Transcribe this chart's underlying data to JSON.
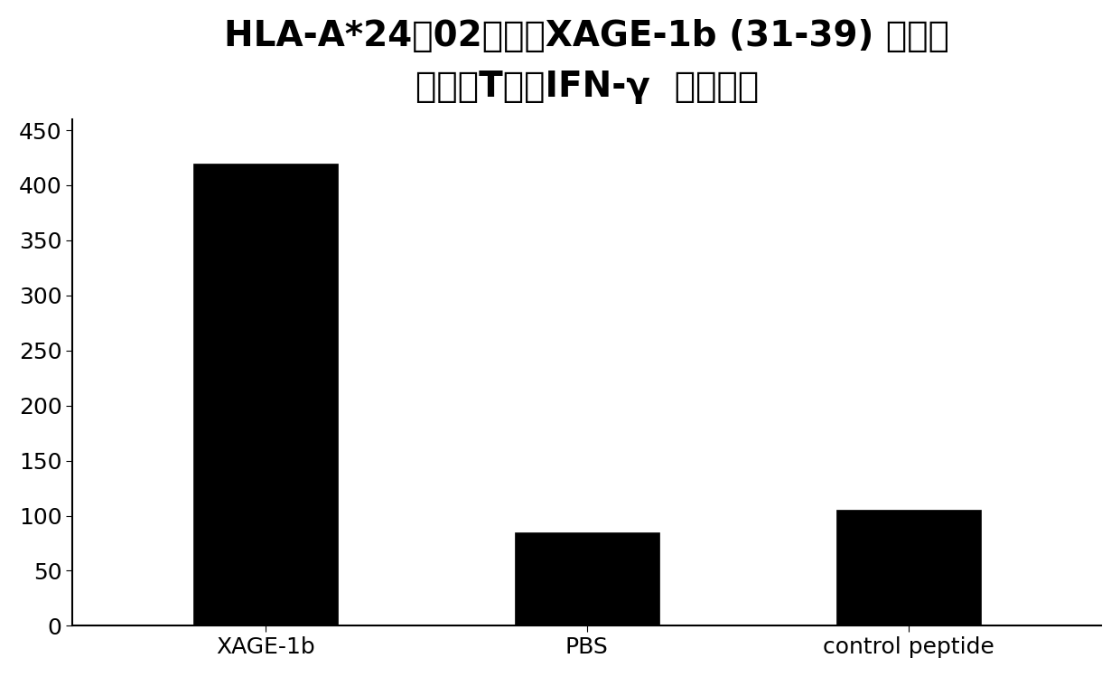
{
  "title_line1": "HLA-A*24：02限制性XAGE-1b (31-39) 特异性",
  "title_line2": "细胞毒T细胞IFN-γ  分泌试验",
  "categories": [
    "XAGE-1b",
    "PBS",
    "control peptide"
  ],
  "values": [
    420,
    85,
    105
  ],
  "bar_color": "#000000",
  "ylim": [
    0,
    460
  ],
  "yticks": [
    0,
    50,
    100,
    150,
    200,
    250,
    300,
    350,
    400,
    450
  ],
  "bar_width": 0.45,
  "title_fontsize": 28,
  "tick_fontsize": 18,
  "xticklabel_fontsize": 18,
  "background_color": "#ffffff",
  "edge_color": "#000000"
}
